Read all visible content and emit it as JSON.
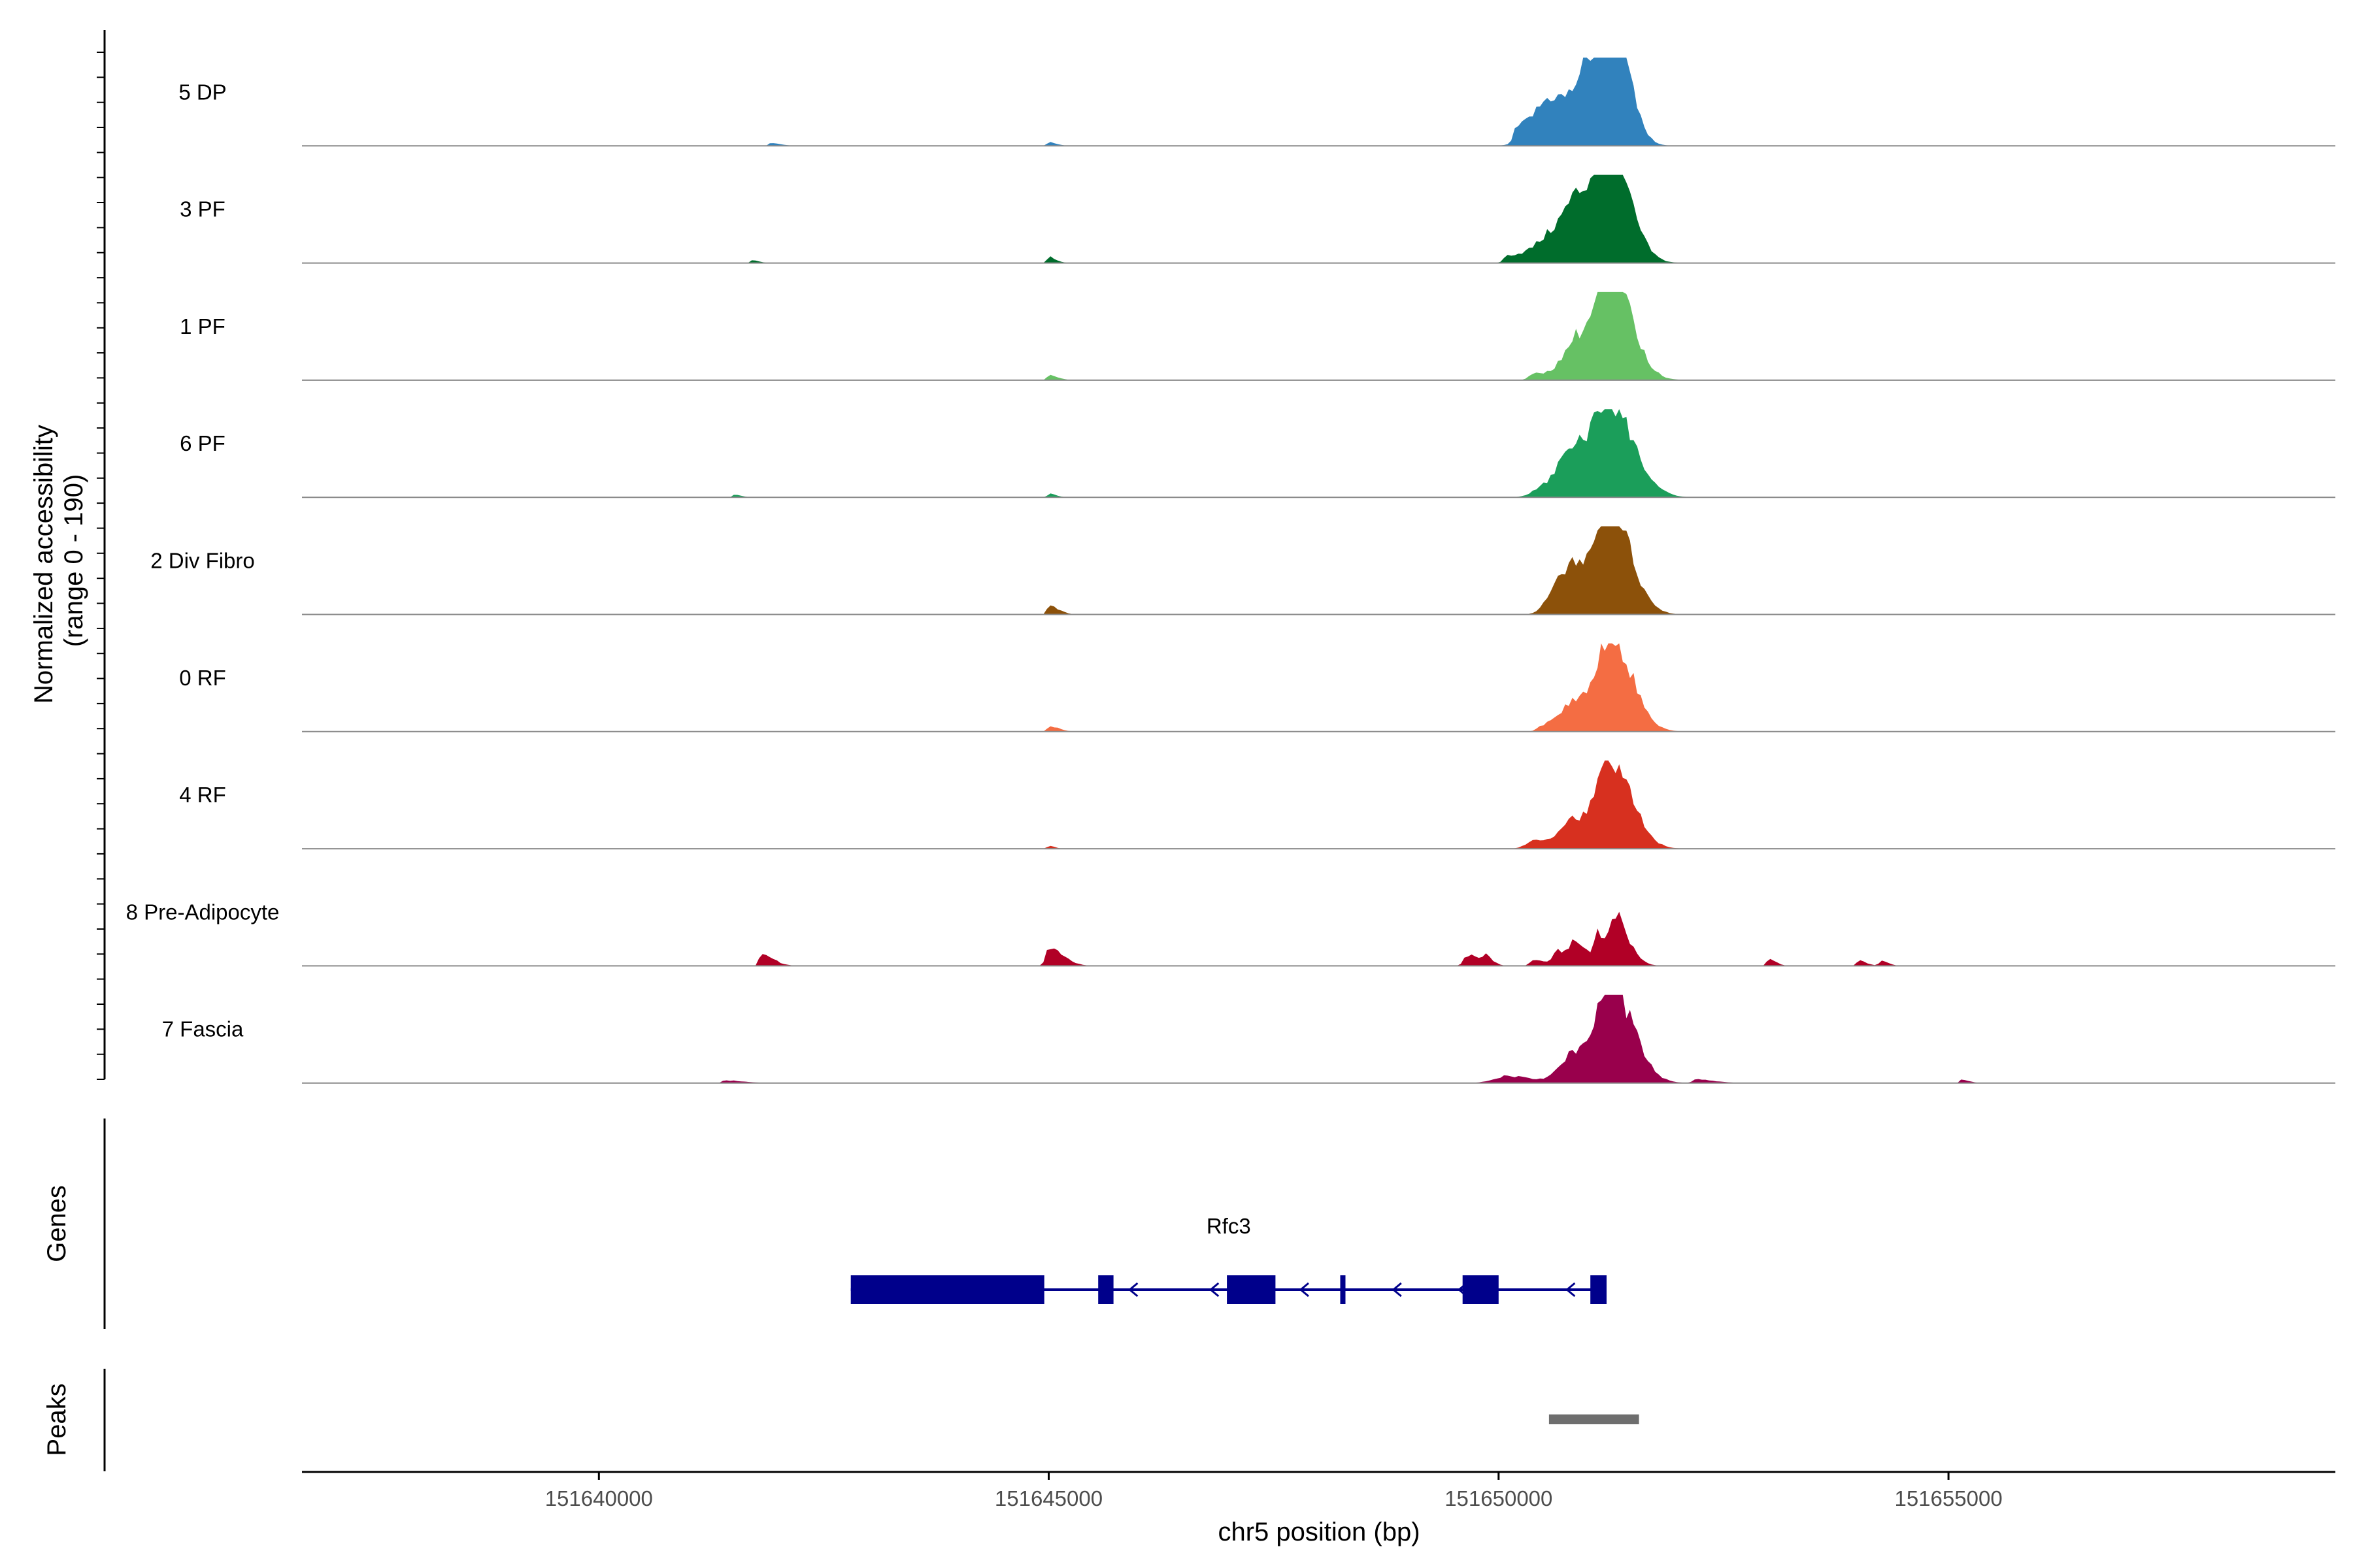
{
  "chart_data": {
    "type": "area",
    "title": "",
    "ylabel_line1": "Normalized accessibility",
    "ylabel_line2": "(range 0 - 190)",
    "yrange": [
      0,
      190
    ],
    "xlabel": "chr5 position (bp)",
    "xlim": [
      151636700,
      151659300
    ],
    "xticks": [
      151640000,
      151645000,
      151650000,
      151655000
    ],
    "tick_labels": [
      "151640000",
      "151645000",
      "151650000",
      "151655000"
    ],
    "tracks": [
      {
        "name": "5 DP",
        "color": "#3182bd",
        "peaks": [
          [
            151650600,
            190,
            250,
            0.55
          ],
          [
            151651000,
            130,
            260,
            0.65
          ],
          [
            151651300,
            175,
            170,
            1.0
          ],
          [
            151650200,
            35,
            150,
            0.15
          ],
          [
            151645000,
            18,
            90,
            0.04
          ],
          [
            151641900,
            18,
            120,
            0.03
          ]
        ]
      },
      {
        "name": "3 PF",
        "color": "#006d2c",
        "peaks": [
          [
            151650600,
            190,
            300,
            0.3
          ],
          [
            151650900,
            160,
            300,
            0.55
          ],
          [
            151651250,
            160,
            220,
            1.0
          ],
          [
            151650100,
            40,
            200,
            0.08
          ],
          [
            151645000,
            18,
            80,
            0.07
          ],
          [
            151641700,
            20,
            80,
            0.03
          ]
        ]
      },
      {
        "name": "1 PF",
        "color": "#66c164",
        "peaks": [
          [
            151650900,
            160,
            350,
            0.5
          ],
          [
            151651250,
            140,
            220,
            1.0
          ],
          [
            151650400,
            60,
            220,
            0.07
          ],
          [
            151645000,
            18,
            100,
            0.06
          ]
        ]
      },
      {
        "name": "6 PF",
        "color": "#1b9e5a",
        "peaks": [
          [
            151650500,
            120,
            300,
            0.1
          ],
          [
            151650850,
            160,
            340,
            0.55
          ],
          [
            151651250,
            150,
            260,
            0.85
          ],
          [
            151645000,
            16,
            80,
            0.04
          ],
          [
            151641500,
            16,
            80,
            0.03
          ]
        ]
      },
      {
        "name": "2 Div Fibro",
        "color": "#8c510a",
        "peaks": [
          [
            151650600,
            100,
            250,
            0.15
          ],
          [
            151650850,
            160,
            340,
            0.5
          ],
          [
            151651250,
            150,
            220,
            1.0
          ],
          [
            151645000,
            20,
            110,
            0.1
          ]
        ]
      },
      {
        "name": "0 RF",
        "color": "#f46d43",
        "peaks": [
          [
            151650500,
            60,
            150,
            0.06
          ],
          [
            151650850,
            150,
            300,
            0.35
          ],
          [
            151651250,
            140,
            230,
            1.0
          ],
          [
            151645000,
            18,
            110,
            0.06
          ]
        ]
      },
      {
        "name": "4 RF",
        "color": "#d7301f",
        "peaks": [
          [
            151650400,
            90,
            180,
            0.1
          ],
          [
            151650850,
            150,
            260,
            0.35
          ],
          [
            151651250,
            130,
            230,
            0.95
          ],
          [
            151645000,
            16,
            60,
            0.04
          ]
        ]
      },
      {
        "name": "8 Pre-Adipocyte",
        "color": "#b10026",
        "peaks": [
          [
            151641800,
            20,
            140,
            0.13
          ],
          [
            151645000,
            35,
            160,
            0.2
          ],
          [
            151649650,
            40,
            150,
            0.12
          ],
          [
            151649850,
            35,
            80,
            0.08
          ],
          [
            151650400,
            45,
            120,
            0.07
          ],
          [
            151650650,
            45,
            140,
            0.17
          ],
          [
            151650850,
            55,
            160,
            0.23
          ],
          [
            151651100,
            40,
            150,
            0.3
          ],
          [
            151651280,
            40,
            160,
            0.5
          ],
          [
            151653000,
            20,
            80,
            0.08
          ],
          [
            151654000,
            20,
            90,
            0.06
          ],
          [
            151654250,
            20,
            80,
            0.06
          ]
        ]
      },
      {
        "name": "7 Fascia",
        "color": "#99004c",
        "peaks": [
          [
            151650100,
            150,
            250,
            0.08
          ],
          [
            151650850,
            160,
            330,
            0.35
          ],
          [
            151651250,
            140,
            240,
            1.0
          ],
          [
            151652200,
            40,
            200,
            0.04
          ],
          [
            151641400,
            30,
            200,
            0.03
          ],
          [
            151655150,
            20,
            80,
            0.04
          ]
        ]
      }
    ],
    "genes": {
      "label": "Genes",
      "gene_name": "Rfc3",
      "strand": "-",
      "span": [
        151642800,
        151651200
      ],
      "exons": [
        [
          151642800,
          151644950
        ],
        [
          151645550,
          151645720
        ],
        [
          151646980,
          151647520
        ],
        [
          151648240,
          151648290
        ],
        [
          151649600,
          151650000
        ],
        [
          151651020,
          151651200
        ]
      ],
      "arrows": [
        151645900,
        151646800,
        151647800,
        151648830,
        151649560,
        151650760
      ]
    },
    "peaks_track": {
      "label": "Peaks",
      "regions": [
        [
          151650560,
          151651560
        ]
      ]
    }
  }
}
